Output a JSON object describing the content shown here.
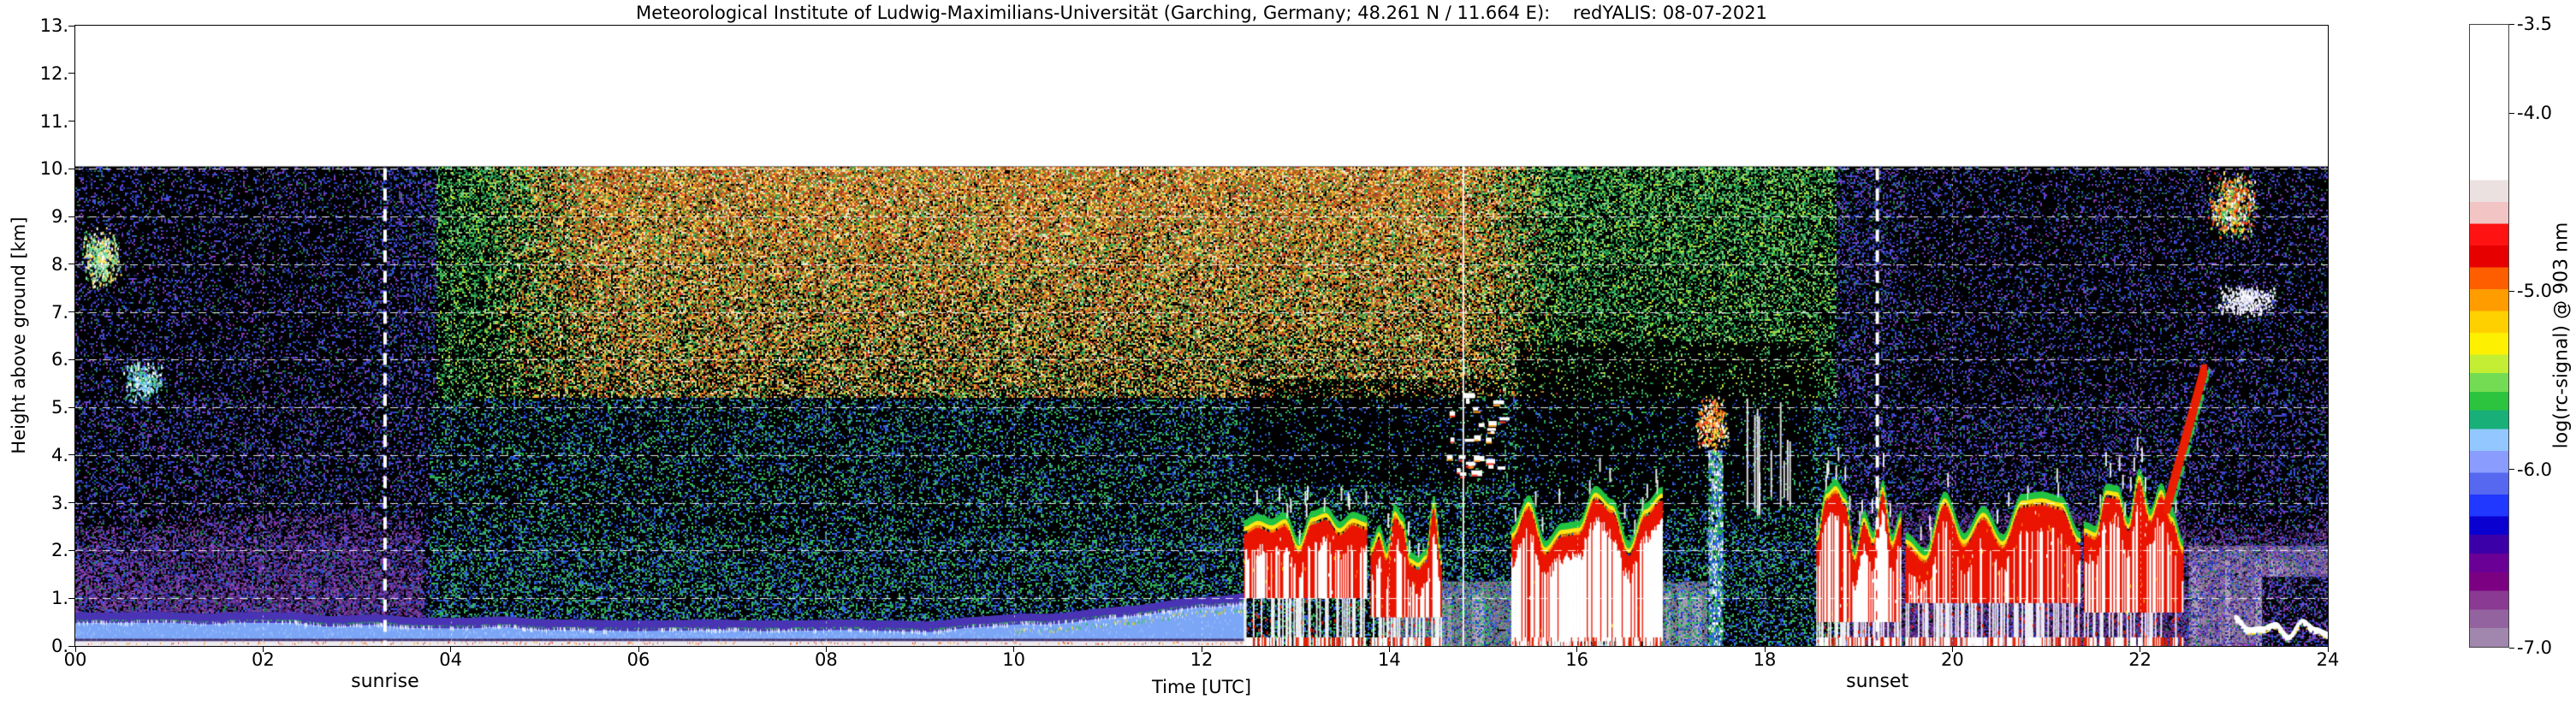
{
  "chart_data": {
    "type": "heatmap",
    "title": "Meteorological Institute of Ludwig-Maximilians-Universität (Garching, Germany; 48.261 N / 11.664 E):    redYALIS: 08-07-2021",
    "xlabel": "Time [UTC]",
    "ylabel": "Height above ground [km]",
    "x_ticks": [
      "00",
      "02",
      "04",
      "06",
      "08",
      "10",
      "12",
      "14",
      "16",
      "18",
      "20",
      "22",
      "24"
    ],
    "x_tick_hours": [
      0,
      2,
      4,
      6,
      8,
      10,
      12,
      14,
      16,
      18,
      20,
      22,
      24
    ],
    "y_ticks": [
      "0.",
      "1.",
      "2.",
      "3.",
      "4.",
      "5.",
      "6.",
      "7.",
      "8.",
      "9.",
      "10.",
      "11.",
      "12.",
      "13."
    ],
    "y_tick_km": [
      0,
      1,
      2,
      3,
      4,
      5,
      6,
      7,
      8,
      9,
      10,
      11,
      12,
      13
    ],
    "x_range_hours": [
      0,
      24
    ],
    "y_range_km": [
      0,
      13
    ],
    "data_top_km": 10.05,
    "grid": {
      "horizontal_km": [
        1,
        2,
        3,
        4,
        5,
        6,
        7,
        8,
        9,
        10
      ],
      "vertical_hours": [
        2,
        4,
        6,
        8,
        10,
        12,
        14,
        16,
        18,
        20,
        22
      ],
      "style": "white dashed/dotted over data region only"
    },
    "colorbar": {
      "label": "log(rc-signal) @ 903 nm",
      "tick_labels": [
        "-3.5",
        "-4.0",
        "-5.0",
        "-6.0",
        "-7.0"
      ],
      "tick_values": [
        -3.5,
        -4.0,
        -5.0,
        -6.0,
        -7.0
      ],
      "vmax": -3.5,
      "vmin": -7.0,
      "stops_top_to_bottom": [
        [
          0.0,
          "#ffffff"
        ],
        [
          0.25,
          "#ebe1e1"
        ],
        [
          0.285,
          "#f2c4c4"
        ],
        [
          0.32,
          "#ff1212"
        ],
        [
          0.355,
          "#e60000"
        ],
        [
          0.39,
          "#ff5e00"
        ],
        [
          0.425,
          "#ff9c00"
        ],
        [
          0.46,
          "#ffd000"
        ],
        [
          0.495,
          "#fdf000"
        ],
        [
          0.53,
          "#c4ee34"
        ],
        [
          0.56,
          "#74dc52"
        ],
        [
          0.59,
          "#2cc43e"
        ],
        [
          0.62,
          "#18b078"
        ],
        [
          0.65,
          "#92c8ff"
        ],
        [
          0.685,
          "#8a9dff"
        ],
        [
          0.72,
          "#5668f0"
        ],
        [
          0.755,
          "#2038ff"
        ],
        [
          0.79,
          "#0a00d0"
        ],
        [
          0.82,
          "#3c00a8"
        ],
        [
          0.85,
          "#6a0096"
        ],
        [
          0.88,
          "#7c0082"
        ],
        [
          0.91,
          "#8a3a92"
        ],
        [
          0.94,
          "#93639f"
        ],
        [
          0.97,
          "#a186ae"
        ],
        [
          1.0,
          "#ab94b8"
        ]
      ]
    },
    "annotations": {
      "sunrise": {
        "label": "sunrise",
        "time_utc": 3.3,
        "style": "white dashed vertical line"
      },
      "sunset": {
        "label": "sunset",
        "time_utc": 19.2,
        "style": "white dashed vertical line"
      }
    },
    "noise_regimes": [
      {
        "name": "night-background",
        "time_utc": [
          [
            0,
            3.3
          ],
          [
            19.2,
            24
          ]
        ],
        "height_km": [
          0,
          10.05
        ],
        "description": "black background with sparse blue/purple/green speckle noise"
      },
      {
        "name": "night-aerosol-haze",
        "time_utc": [
          [
            0,
            3.7
          ],
          [
            18.9,
            24
          ]
        ],
        "height_km": [
          0,
          3.0
        ],
        "description": "purple aerosol speckle, intensity increasing toward ground"
      },
      {
        "name": "daytime-low",
        "time_utc": [
          [
            3.3,
            19.2
          ]
        ],
        "height_km": [
          0,
          5.2
        ],
        "description": "blue/green speckle noise on black"
      },
      {
        "name": "daytime-solar-high",
        "time_utc": [
          [
            4.5,
            15.6
          ]
        ],
        "height_km": [
          5.2,
          10.05
        ],
        "description": "dense orange/brown solar background noise, density increasing with height"
      },
      {
        "name": "late-afternoon-high",
        "time_utc": [
          [
            15.6,
            19.2
          ]
        ],
        "height_km": [
          4,
          10.05
        ],
        "description": "green dominated speckle noise"
      }
    ],
    "features": [
      {
        "name": "high-echo-00h",
        "type": "speckle-blob",
        "t": [
          0.05,
          0.5
        ],
        "h": [
          7.5,
          8.8
        ],
        "palette": [
          "#ffffff",
          "#50d080",
          "#90e8b0",
          "#ffe060"
        ]
      },
      {
        "name": "echo-01h",
        "type": "speckle-blob",
        "t": [
          0.5,
          0.95
        ],
        "h": [
          5.1,
          6.0
        ],
        "palette": [
          "#ffffff",
          "#60c0ff",
          "#50d080"
        ]
      },
      {
        "name": "morning-boundary-layer",
        "type": "boundary-layer",
        "t": [
          0,
          12.45
        ],
        "h": [
          0,
          0.95
        ],
        "description": "shallow blue layer with white top wisps, rising after 09 UTC"
      },
      {
        "name": "dim-region-midday",
        "type": "dim-region",
        "t": [
          12.5,
          15.2
        ],
        "h": [
          3.4,
          5.6
        ]
      },
      {
        "name": "cumulus-midday",
        "type": "cloud",
        "t": [
          12.45,
          13.75
        ],
        "h_base": 1.0,
        "h_top": 3.3,
        "whiteness": 0.55
      },
      {
        "name": "cumulus-early-afternoon",
        "type": "cloud",
        "t": [
          13.8,
          14.55
        ],
        "h_base": 0.6,
        "h_top": 2.7,
        "whiteness": 0.5
      },
      {
        "name": "attenuated-floor-1",
        "type": "grey-floor",
        "t": [
          14.0,
          15.33
        ],
        "h": [
          0,
          1.35
        ]
      },
      {
        "name": "mid-level-wisps",
        "type": "wisps",
        "t": [
          14.6,
          15.22
        ],
        "h": [
          3.6,
          5.4
        ]
      },
      {
        "name": "data-gap",
        "type": "gap-line",
        "t": [
          14.78,
          14.8
        ],
        "h": [
          0,
          10.05
        ]
      },
      {
        "name": "thick-cloud-mass",
        "type": "cloud",
        "t": [
          15.3,
          16.9
        ],
        "h_base": 0.1,
        "h_top": 3.1,
        "whiteness": 0.8
      },
      {
        "name": "dim-region-above-clouds",
        "type": "dim-region",
        "t": [
          15.35,
          18.5
        ],
        "h": [
          2.9,
          6.4
        ]
      },
      {
        "name": "attenuated-floor-2",
        "type": "grey-floor",
        "t": [
          16.88,
          17.38
        ],
        "h": [
          0,
          1.35
        ]
      },
      {
        "name": "cloud-blob-17h",
        "type": "speckle-blob",
        "t": [
          17.25,
          17.62
        ],
        "h": [
          4.1,
          5.3
        ],
        "palette": [
          "#ffffff",
          "#ff3020",
          "#ffa020",
          "#ffe040"
        ]
      },
      {
        "name": "ground-column-17h",
        "type": "column",
        "t": [
          17.4,
          17.55
        ],
        "h": [
          0,
          4.1
        ],
        "palette": [
          "#30c050",
          "#3060ff",
          "#ffffff"
        ]
      },
      {
        "name": "white-streaks-18h",
        "type": "streaks",
        "t": [
          17.7,
          18.35
        ],
        "h": [
          2.6,
          5.0
        ]
      },
      {
        "name": "cloud-mass-evening",
        "type": "cloud",
        "t": [
          18.55,
          19.45
        ],
        "h_base": 0.5,
        "h_top": 3.0,
        "whiteness": 0.65
      },
      {
        "name": "stratus-night",
        "type": "cloud",
        "t": [
          19.5,
          21.35
        ],
        "h_base": 0.9,
        "h_top": 2.9,
        "whiteness": 0.35
      },
      {
        "name": "cloud-mass-22h",
        "type": "cloud",
        "t": [
          21.4,
          22.45
        ],
        "h_base": 0.7,
        "h_top": 3.2,
        "whiteness": 0.6
      },
      {
        "name": "rising-plume-22h",
        "type": "plume",
        "t": [
          22.28,
          22.68
        ],
        "h": [
          2.9,
          5.8
        ]
      },
      {
        "name": "attenuated-floor-3",
        "type": "grey-floor",
        "t": [
          22.52,
          24
        ],
        "h": [
          0,
          2.1
        ]
      },
      {
        "name": "dark-attenuation-patch",
        "type": "dark-floor",
        "t": [
          23.3,
          24
        ],
        "h": [
          0,
          1.45
        ]
      },
      {
        "name": "high-echo-23h",
        "type": "speckle-blob",
        "t": [
          22.7,
          23.25
        ],
        "h": [
          8.5,
          10.0
        ],
        "palette": [
          "#40c860",
          "#ffa020",
          "#ff4010",
          "#ffe040",
          "#ffffff"
        ]
      },
      {
        "name": "mid-specks-23h",
        "type": "speckle-blob",
        "t": [
          22.8,
          23.45
        ],
        "h": [
          6.9,
          7.6
        ],
        "palette": [
          "#ffffff",
          "#e8e8ff"
        ]
      },
      {
        "name": "shallow-night-layer",
        "type": "bottom-layer",
        "t": [
          23.0,
          24
        ],
        "h": [
          0.2,
          0.65
        ]
      }
    ]
  }
}
